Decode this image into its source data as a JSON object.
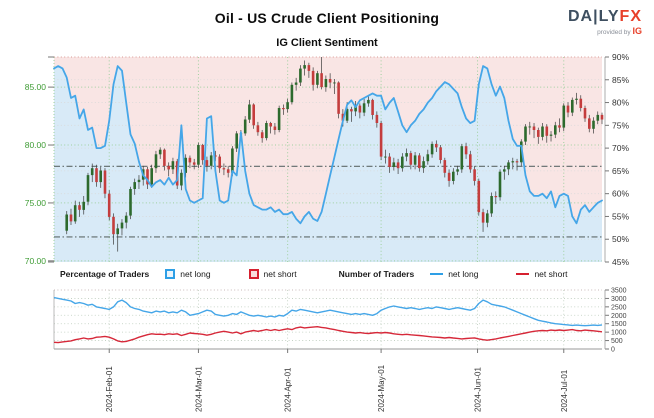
{
  "header": {
    "title": "Oil - US Crude Client Positioning",
    "subtitle": "IG Client Sentiment",
    "logo": {
      "name_navy": "DA|LY",
      "name_red": "FX",
      "provided": "provided by",
      "ig": "IG"
    }
  },
  "legend": {
    "percentage_label": "Percentage of Traders",
    "pct_net_long": "net long",
    "pct_net_short": "net short",
    "number_label": "Number of Traders",
    "num_net_long": "net long",
    "num_net_short": "net short"
  },
  "colors": {
    "net_long_blue": "#45a6e8",
    "net_short_red": "#d62839",
    "candle_up": "#2d6a2d",
    "candle_down": "#c43d3d",
    "wick": "#3a3a3a",
    "bg_short_area": "#f9e5e4",
    "bg_long_area": "#d8eaf7",
    "price_label_green": "#3f9c35",
    "grid_green": "#9fd09f",
    "grid_gray": "#d9d9d9",
    "grid_lower": "#bcccbc",
    "dashdot_gray": "#5f6a6a",
    "axis_gray": "#999999",
    "tick_gray": "#777777",
    "top_border_pink": "#d99a94"
  },
  "chart_data": {
    "type": "candlestick+line",
    "x": {
      "start_date": "2024-Jan-15",
      "end_date": "2024-Jul-12",
      "n_points": 130,
      "month_labels": [
        "2024-Feb-01",
        "2024-Mar-01",
        "2024-Apr-01",
        "2024-May-01",
        "2024-Jun-01",
        "2024-Jul-01"
      ],
      "month_tick_indices": [
        13,
        34,
        55,
        77,
        99.7,
        120
      ]
    },
    "main": {
      "type": "candlestick+line",
      "title": "IG Client Sentiment",
      "price_axis": {
        "side": "left",
        "range": [
          69.9,
          87.6
        ],
        "ticks": [
          70,
          75,
          80,
          85
        ],
        "labels": [
          "70.00",
          "75.00",
          "80.00",
          "85.00"
        ]
      },
      "percent_axis": {
        "side": "right",
        "range": [
          45,
          90
        ],
        "ticks": [
          45,
          50,
          55,
          60,
          65,
          70,
          75,
          80,
          85,
          90
        ],
        "labels": [
          "45%",
          "50%",
          "55%",
          "60%",
          "65%",
          "70%",
          "75%",
          "80%",
          "85%",
          "90%"
        ]
      },
      "reference_pct_lines": [
        66,
        50.5
      ],
      "net_long_pct": [
        87.5,
        88,
        87.5,
        85.5,
        81,
        81.5,
        76.5,
        78.5,
        74,
        74.5,
        70,
        70,
        70.5,
        76,
        84,
        88,
        87,
        80,
        73,
        71,
        67,
        64,
        63,
        61.5,
        62.5,
        63,
        62,
        63.5,
        62,
        63,
        75,
        61,
        58.5,
        58,
        58.5,
        59,
        76.5,
        77,
        65,
        58.5,
        58,
        58.5,
        65,
        64,
        73.5,
        65,
        60,
        57.5,
        57,
        56.5,
        56.5,
        57,
        56,
        56.5,
        55.5,
        55.5,
        56,
        54.5,
        53.5,
        55,
        56,
        54.5,
        54,
        56,
        60,
        64,
        68,
        72,
        76,
        79.5,
        80.5,
        79,
        80.5,
        81,
        81.5,
        82,
        81.5,
        81.5,
        78.5,
        80,
        81,
        78,
        75,
        73.5,
        75,
        76,
        77.5,
        78.5,
        80,
        81,
        82.5,
        83.5,
        84.5,
        84,
        83,
        82,
        79,
        76.5,
        75.5,
        76,
        84,
        88,
        87.5,
        84,
        81.5,
        83.5,
        81,
        76,
        72,
        70.5,
        70.5,
        64,
        60.5,
        59.5,
        59.5,
        60,
        59,
        60.5,
        57,
        59.5,
        60,
        59.5,
        55,
        53.5,
        56.5,
        57.5,
        56,
        57,
        58,
        58.5
      ],
      "ohlc": [
        null,
        null,
        null,
        [
          72.6,
          74.3,
          72.3,
          74.0
        ],
        [
          74.0,
          74.5,
          73.1,
          73.4
        ],
        [
          73.4,
          75.2,
          73.2,
          74.8
        ],
        [
          74.8,
          75.1,
          73.8,
          74.4
        ],
        [
          74.4,
          75.6,
          74.0,
          75.1
        ],
        [
          75.1,
          77.6,
          74.8,
          77.4
        ],
        [
          77.4,
          78.4,
          76.8,
          78.0
        ],
        [
          78.0,
          78.3,
          76.4,
          76.8
        ],
        [
          76.8,
          78.1,
          76.3,
          77.8
        ],
        [
          77.8,
          78.0,
          75.4,
          75.8
        ],
        [
          75.8,
          76.1,
          73.5,
          73.8
        ],
        [
          73.8,
          74.1,
          71.4,
          72.3
        ],
        [
          72.3,
          73.2,
          70.8,
          72.8
        ],
        [
          72.8,
          73.6,
          72.2,
          73.3
        ],
        [
          73.3,
          74.2,
          72.8,
          73.9
        ],
        [
          73.9,
          76.4,
          73.6,
          76.2
        ],
        [
          76.2,
          77.1,
          75.7,
          76.8
        ],
        [
          76.8,
          77.4,
          76.2,
          77.0
        ],
        [
          77.0,
          78.2,
          76.5,
          77.9
        ],
        [
          77.9,
          78.1,
          76.2,
          76.6
        ],
        [
          76.6,
          78.3,
          76.3,
          78.0
        ],
        [
          78.0,
          79.5,
          77.6,
          79.2
        ],
        [
          79.2,
          79.8,
          78.8,
          79.6
        ],
        [
          79.6,
          79.7,
          77.8,
          78.2
        ],
        [
          78.2,
          78.5,
          77.3,
          77.9
        ],
        [
          77.9,
          78.9,
          77.5,
          78.6
        ],
        [
          78.6,
          78.8,
          76.2,
          76.5
        ],
        [
          76.5,
          77.9,
          76.1,
          77.6
        ],
        [
          77.6,
          79.2,
          77.2,
          78.9
        ],
        [
          78.9,
          79.1,
          78.0,
          78.5
        ],
        [
          78.5,
          78.8,
          77.9,
          78.3
        ],
        [
          78.3,
          80.2,
          78.0,
          80.0
        ],
        [
          80.0,
          80.1,
          78.3,
          78.7
        ],
        [
          78.7,
          79.0,
          77.7,
          78.2
        ],
        [
          78.2,
          79.4,
          77.9,
          79.1
        ],
        [
          79.1,
          79.5,
          78.6,
          79.0
        ],
        [
          79.0,
          79.2,
          77.6,
          78.0
        ],
        [
          78.0,
          78.4,
          77.4,
          77.9
        ],
        [
          77.9,
          78.2,
          77.2,
          77.6
        ],
        [
          77.6,
          79.9,
          77.3,
          79.7
        ],
        [
          79.7,
          81.2,
          79.4,
          81.0
        ],
        [
          81.0,
          81.3,
          80.4,
          81.0
        ],
        [
          81.0,
          82.5,
          80.8,
          82.2
        ],
        [
          82.2,
          83.9,
          81.9,
          83.5
        ],
        [
          83.5,
          83.6,
          81.4,
          81.7
        ],
        [
          81.7,
          82.0,
          80.8,
          81.1
        ],
        [
          81.1,
          81.3,
          80.2,
          80.6
        ],
        [
          80.6,
          82.1,
          80.4,
          81.9
        ],
        [
          81.9,
          82.0,
          81.0,
          81.6
        ],
        [
          81.6,
          81.9,
          80.9,
          81.3
        ],
        [
          81.3,
          83.4,
          81.1,
          83.2
        ],
        [
          83.2,
          83.5,
          82.6,
          83.1
        ],
        [
          83.1,
          84.0,
          82.8,
          83.7
        ],
        [
          83.7,
          85.4,
          83.5,
          85.2
        ],
        [
          85.2,
          85.8,
          84.7,
          85.4
        ],
        [
          85.4,
          86.9,
          85.1,
          86.6
        ],
        [
          86.6,
          87.3,
          86.0,
          86.9
        ],
        [
          86.9,
          87.1,
          85.8,
          86.4
        ],
        [
          86.4,
          86.7,
          84.7,
          85.2
        ],
        [
          85.2,
          86.4,
          84.9,
          86.2
        ],
        [
          86.2,
          87.6,
          84.8,
          85.0
        ],
        [
          85.0,
          86.0,
          84.6,
          85.7
        ],
        [
          85.7,
          86.2,
          84.9,
          85.4
        ],
        [
          85.4,
          85.7,
          84.4,
          85.4
        ],
        [
          85.4,
          85.5,
          82.3,
          82.7
        ],
        [
          82.7,
          83.1,
          81.6,
          82.1
        ],
        [
          82.1,
          83.7,
          81.9,
          83.1
        ],
        [
          83.1,
          83.3,
          82.0,
          82.9
        ],
        [
          82.9,
          83.8,
          82.5,
          83.4
        ],
        [
          83.4,
          83.6,
          82.3,
          82.8
        ],
        [
          82.8,
          84.0,
          82.5,
          83.6
        ],
        [
          83.6,
          84.2,
          83.3,
          83.9
        ],
        [
          83.9,
          84.0,
          82.2,
          82.6
        ],
        [
          82.6,
          82.9,
          81.5,
          81.9
        ],
        [
          81.9,
          82.1,
          78.7,
          79.0
        ],
        [
          79.0,
          79.6,
          78.4,
          79.0
        ],
        [
          79.0,
          79.3,
          77.6,
          78.1
        ],
        [
          78.1,
          78.9,
          77.8,
          78.5
        ],
        [
          78.5,
          78.8,
          77.5,
          78.0
        ],
        [
          78.0,
          79.3,
          77.7,
          79.0
        ],
        [
          79.0,
          79.7,
          78.6,
          79.3
        ],
        [
          79.3,
          79.5,
          77.9,
          78.3
        ],
        [
          78.3,
          79.4,
          77.9,
          79.1
        ],
        [
          79.1,
          79.3,
          77.7,
          78.0
        ],
        [
          78.0,
          79.0,
          77.6,
          78.6
        ],
        [
          78.6,
          79.6,
          78.3,
          79.2
        ],
        [
          79.2,
          80.3,
          78.9,
          80.1
        ],
        [
          80.1,
          80.4,
          79.4,
          79.8
        ],
        [
          79.8,
          80.0,
          78.4,
          78.7
        ],
        [
          78.7,
          78.9,
          77.2,
          77.6
        ],
        [
          77.6,
          77.9,
          76.4,
          76.9
        ],
        [
          76.9,
          78.0,
          76.6,
          77.7
        ],
        [
          77.7,
          78.2,
          77.4,
          77.9
        ],
        [
          77.9,
          80.1,
          77.6,
          79.9
        ],
        [
          79.9,
          80.2,
          78.8,
          79.2
        ],
        [
          79.2,
          79.5,
          77.6,
          77.9
        ],
        [
          77.9,
          78.2,
          76.5,
          76.9
        ],
        [
          76.9,
          77.1,
          73.9,
          74.2
        ],
        [
          74.2,
          74.5,
          72.5,
          73.3
        ],
        [
          73.3,
          74.4,
          72.9,
          74.1
        ],
        [
          74.1,
          75.9,
          73.8,
          75.6
        ],
        [
          75.6,
          76.0,
          74.9,
          75.5
        ],
        [
          75.5,
          77.9,
          75.2,
          77.7
        ],
        [
          77.7,
          78.2,
          77.0,
          77.9
        ],
        [
          77.9,
          78.7,
          77.4,
          78.5
        ],
        [
          78.5,
          78.9,
          77.9,
          78.6
        ],
        [
          78.6,
          78.8,
          77.8,
          78.5
        ],
        [
          78.5,
          80.5,
          78.2,
          80.3
        ],
        [
          80.3,
          81.8,
          80.0,
          81.6
        ],
        [
          81.6,
          82.0,
          80.9,
          81.6
        ],
        [
          81.6,
          81.9,
          80.6,
          81.3
        ],
        [
          81.3,
          81.5,
          80.1,
          80.7
        ],
        [
          80.7,
          81.9,
          80.4,
          81.6
        ],
        [
          81.6,
          81.8,
          80.2,
          80.8
        ],
        [
          80.8,
          81.2,
          80.3,
          80.9
        ],
        [
          80.9,
          82.0,
          80.6,
          81.7
        ],
        [
          81.7,
          82.3,
          81.1,
          81.5
        ],
        [
          81.5,
          83.6,
          81.2,
          83.4
        ],
        [
          83.4,
          83.7,
          82.4,
          82.8
        ],
        [
          82.8,
          84.1,
          82.5,
          83.9
        ],
        [
          83.9,
          84.5,
          83.5,
          84.0
        ],
        [
          84.0,
          84.3,
          82.9,
          83.2
        ],
        [
          83.2,
          83.4,
          82.0,
          82.3
        ],
        [
          82.3,
          82.6,
          81.1,
          81.4
        ],
        [
          81.4,
          82.4,
          81.0,
          82.1
        ],
        [
          82.1,
          82.9,
          81.8,
          82.6
        ],
        [
          82.6,
          82.8,
          81.8,
          82.2
        ]
      ]
    },
    "lower": {
      "type": "line",
      "count_axis": {
        "side": "right",
        "range": [
          0,
          3500
        ],
        "ticks": [
          0,
          500,
          1000,
          1500,
          2000,
          2500,
          3000,
          3500
        ],
        "labels": [
          "0",
          "500",
          "1000",
          "1500",
          "2000",
          "2500",
          "3000",
          "3500"
        ]
      },
      "net_long_count": [
        3050,
        3000,
        2950,
        2900,
        2850,
        2700,
        2750,
        2700,
        2600,
        2650,
        2500,
        2450,
        2400,
        2350,
        2500,
        2800,
        2900,
        2750,
        2500,
        2400,
        2350,
        2250,
        2200,
        2150,
        2250,
        2200,
        2250,
        2150,
        2200,
        2150,
        2300,
        2200,
        2000,
        2050,
        2100,
        2200,
        2300,
        2250,
        2050,
        2000,
        1950,
        2000,
        2100,
        2050,
        2200,
        2100,
        2000,
        1950,
        2000,
        1950,
        1900,
        1950,
        1900,
        2000,
        1950,
        2100,
        2300,
        2250,
        2350,
        2300,
        2250,
        2200,
        2150,
        2200,
        2250,
        2300,
        2250,
        2200,
        2150,
        2100,
        2050,
        2100,
        2050,
        2100,
        2050,
        2000,
        2100,
        2300,
        2400,
        2500,
        2550,
        2500,
        2450,
        2400,
        2450,
        2400,
        2350,
        2400,
        2450,
        2400,
        2500,
        2450,
        2400,
        2350,
        2400,
        2450,
        2400,
        2350,
        2300,
        2400,
        2700,
        2900,
        2800,
        2650,
        2600,
        2550,
        2500,
        2400,
        2300,
        2200,
        2100,
        2000,
        1900,
        1800,
        1700,
        1650,
        1600,
        1550,
        1500,
        1480,
        1450,
        1430,
        1400,
        1420,
        1400,
        1380,
        1400,
        1420,
        1400,
        1430
      ],
      "net_short_count": [
        400,
        380,
        420,
        450,
        480,
        550,
        600,
        650,
        600,
        620,
        700,
        720,
        750,
        700,
        600,
        480,
        430,
        450,
        520,
        600,
        700,
        780,
        850,
        900,
        870,
        880,
        850,
        900,
        870,
        900,
        800,
        870,
        950,
        920,
        900,
        870,
        820,
        870,
        950,
        1000,
        1050,
        1000,
        950,
        1000,
        900,
        1000,
        1050,
        1100,
        1050,
        1100,
        1150,
        1100,
        1150,
        1100,
        1150,
        1200,
        1150,
        1250,
        1300,
        1250,
        1280,
        1300,
        1320,
        1280,
        1250,
        1200,
        1150,
        1100,
        1050,
        1000,
        980,
        950,
        970,
        940,
        920,
        950,
        970,
        950,
        980,
        950,
        900,
        870,
        850,
        870,
        840,
        820,
        800,
        780,
        750,
        720,
        700,
        680,
        650,
        680,
        650,
        630,
        600,
        620,
        640,
        660,
        600,
        550,
        520,
        560,
        600,
        650,
        700,
        750,
        800,
        850,
        900,
        950,
        1000,
        1050,
        1080,
        1100,
        1080,
        1120,
        1100,
        1130,
        1100,
        1120,
        1150,
        1100,
        1080,
        1120,
        1100,
        1080,
        1050,
        1020
      ]
    }
  }
}
